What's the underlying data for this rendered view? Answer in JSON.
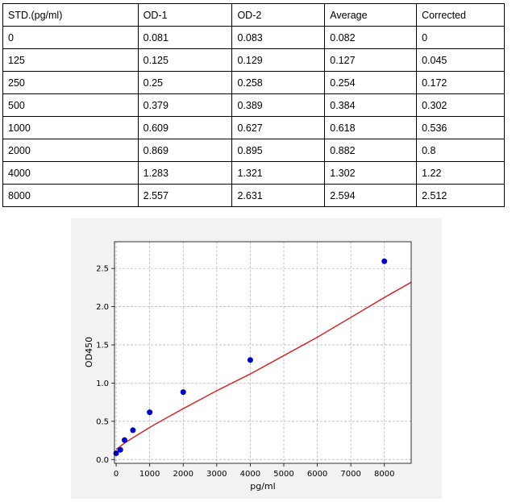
{
  "table": {
    "headers": [
      "STD.(pg/ml)",
      "OD-1",
      "OD-2",
      "Average",
      "Corrected"
    ],
    "rows": [
      [
        "0",
        "0.081",
        "0.083",
        "0.082",
        "0"
      ],
      [
        "125",
        "0.125",
        "0.129",
        "0.127",
        "0.045"
      ],
      [
        "250",
        "0.25",
        "0.258",
        "0.254",
        "0.172"
      ],
      [
        "500",
        "0.379",
        "0.389",
        "0.384",
        "0.302"
      ],
      [
        "1000",
        "0.609",
        "0.627",
        "0.618",
        "0.536"
      ],
      [
        "2000",
        "0.869",
        "0.895",
        "0.882",
        "0.8"
      ],
      [
        "4000",
        "1.283",
        "1.321",
        "1.302",
        "1.22"
      ],
      [
        "8000",
        "2.557",
        "2.631",
        "2.594",
        "2.512"
      ]
    ]
  },
  "chart_data": {
    "type": "scatter",
    "xlabel": "pg/ml",
    "ylabel": "OD450",
    "xlim": [
      -50,
      8800
    ],
    "ylim": [
      -0.05,
      2.85
    ],
    "xticks": [
      0,
      1000,
      2000,
      3000,
      4000,
      5000,
      6000,
      7000,
      8000
    ],
    "yticks": [
      0.0,
      0.5,
      1.0,
      1.5,
      2.0,
      2.5
    ],
    "ytick_labels": [
      "0.0",
      "0.5",
      "1.0",
      "1.5",
      "2.0",
      "2.5"
    ],
    "grid": true,
    "points": {
      "x": [
        0,
        125,
        250,
        500,
        1000,
        2000,
        4000,
        8000
      ],
      "y": [
        0.082,
        0.127,
        0.254,
        0.384,
        0.618,
        0.882,
        1.302,
        2.594
      ],
      "color": "#0000cc"
    },
    "fit_curve": {
      "x": [
        0,
        250,
        500,
        1000,
        1500,
        2000,
        3000,
        4000,
        5000,
        6000,
        7000,
        8000,
        8800
      ],
      "y": [
        0.13,
        0.215,
        0.285,
        0.42,
        0.545,
        0.665,
        0.9,
        1.12,
        1.36,
        1.6,
        1.86,
        2.12,
        2.32
      ],
      "color": "#d62728"
    }
  }
}
